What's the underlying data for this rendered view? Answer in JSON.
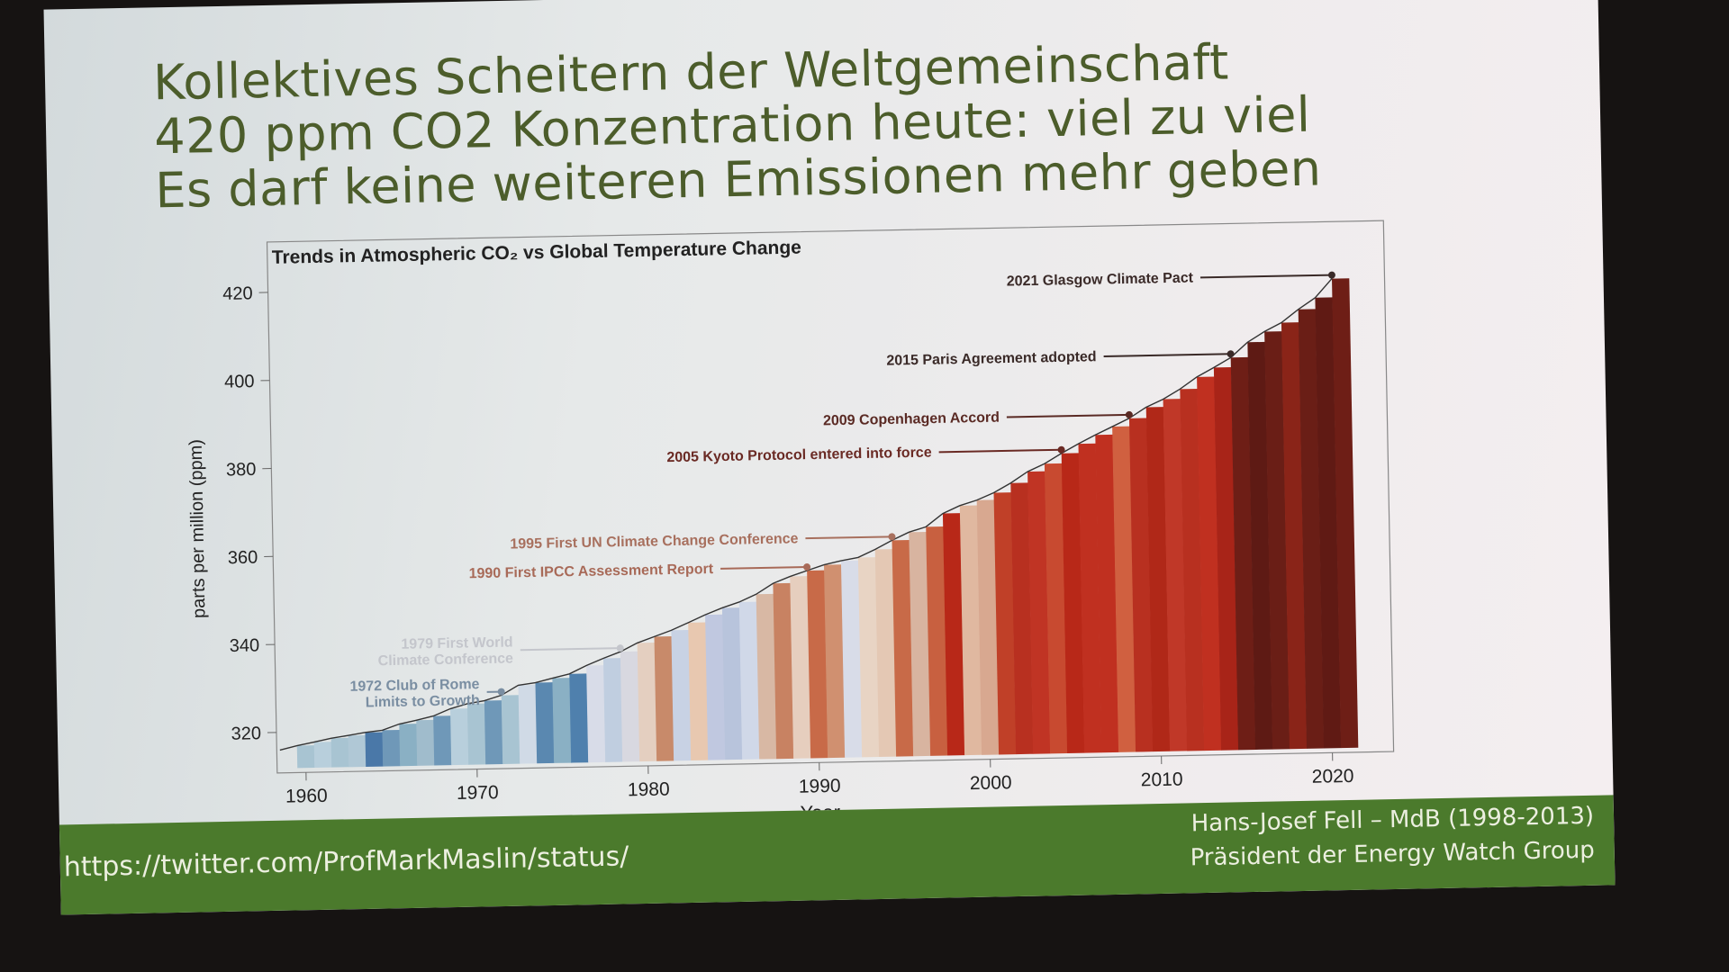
{
  "slide": {
    "title_lines": [
      "Kollektives Scheitern der Weltgemeinschaft",
      "420 ppm CO2 Konzentration heute: viel zu viel",
      "Es darf keine weiteren Emissionen mehr geben"
    ],
    "footer": {
      "url": "https://twitter.com/ProfMarkMaslin/status/",
      "credit_line1": "Hans-Josef Fell – MdB (1998-2013)",
      "credit_line2": "Präsident der Energy Watch Group"
    },
    "colors": {
      "title": "#4c5d2b",
      "footer_bg": "#4b7a2c",
      "footer_text": "#ecefe0"
    }
  },
  "chart_data": {
    "type": "area",
    "title": "Trends in Atmospheric CO₂ vs Global Temperature Change",
    "xlabel": "Year",
    "ylabel": "parts per million (ppm)",
    "xlim": [
      1958,
      2022
    ],
    "ylim": [
      310,
      424
    ],
    "x_ticks": [
      "1960",
      "1970",
      "1980",
      "1990",
      "2000",
      "2010",
      "2020"
    ],
    "y_ticks": [
      "320",
      "340",
      "360",
      "380",
      "400",
      "420"
    ],
    "grid": false,
    "legend": "none",
    "x": [
      1959,
      1960,
      1961,
      1962,
      1963,
      1964,
      1965,
      1966,
      1967,
      1968,
      1969,
      1970,
      1971,
      1972,
      1973,
      1974,
      1975,
      1976,
      1977,
      1978,
      1979,
      1980,
      1981,
      1982,
      1983,
      1984,
      1985,
      1986,
      1987,
      1988,
      1989,
      1990,
      1991,
      1992,
      1993,
      1994,
      1995,
      1996,
      1997,
      1998,
      1999,
      2000,
      2001,
      2002,
      2003,
      2004,
      2005,
      2006,
      2007,
      2008,
      2009,
      2010,
      2011,
      2012,
      2013,
      2014,
      2015,
      2016,
      2017,
      2018,
      2019,
      2020,
      2021
    ],
    "co2_ppm": [
      315.98,
      316.91,
      317.64,
      318.45,
      318.99,
      319.62,
      320.04,
      321.38,
      322.16,
      323.04,
      324.62,
      325.68,
      326.32,
      327.46,
      329.68,
      330.19,
      331.13,
      332.03,
      333.84,
      335.41,
      336.84,
      338.76,
      340.12,
      341.48,
      343.15,
      344.87,
      346.35,
      347.61,
      349.31,
      351.69,
      353.2,
      354.45,
      355.7,
      356.54,
      357.21,
      358.96,
      360.97,
      362.74,
      363.88,
      366.84,
      368.54,
      369.71,
      371.32,
      373.45,
      375.98,
      377.7,
      379.98,
      382.09,
      384.02,
      385.83,
      387.64,
      390.1,
      391.85,
      394.06,
      396.74,
      398.81,
      401.01,
      404.41,
      406.76,
      408.72,
      411.66,
      414.24,
      418.5
    ],
    "stripe_colors": [
      "#a8c4d2",
      "#a8c4d2",
      "#b8cfdc",
      "#a8c4d2",
      "#b0c8d6",
      "#4a78a8",
      "#6f98b8",
      "#8ab0c4",
      "#a0bccc",
      "#6f98b8",
      "#b8cfdc",
      "#a8c4d2",
      "#6f98b8",
      "#a8c4d2",
      "#d0dae6",
      "#5a88b0",
      "#8ab0c4",
      "#4f80ad",
      "#d8dce8",
      "#c0cee0",
      "#d8d8e0",
      "#e4cfc0",
      "#c88a6a",
      "#c8d2e4",
      "#e8c8b0",
      "#c0c8e0",
      "#b8c4dc",
      "#d0d8e8",
      "#d8b8a4",
      "#c88262",
      "#e6cebe",
      "#c86a48",
      "#d09070",
      "#d8dce8",
      "#e8d4c4",
      "#e4c8b4",
      "#c86a48",
      "#d8b4a0",
      "#c86040",
      "#b82818",
      "#e0b8a0",
      "#d8a890",
      "#c04028",
      "#b83020",
      "#c03424",
      "#c84a30",
      "#b82818",
      "#c03020",
      "#c03020",
      "#d06040",
      "#b83020",
      "#b02818",
      "#c03828",
      "#b83020",
      "#c03020",
      "#a82418",
      "#6e1e16",
      "#5e1a14",
      "#6a1e16",
      "#8a2418",
      "#6a1e16",
      "#601a14",
      "#6e1e16"
    ],
    "annotations": [
      {
        "year": 2021,
        "label": "2021 Glasgow Climate Pact",
        "color": "#3a2a28"
      },
      {
        "year": 2015,
        "label": "2015 Paris Agreement adopted",
        "color": "#3a2a28"
      },
      {
        "year": 2009,
        "label": "2009 Copenhagen Accord",
        "color": "#5a2a24"
      },
      {
        "year": 2005,
        "label": "2005 Kyoto Protocol entered into force",
        "color": "#6a2a24"
      },
      {
        "year": 1995,
        "label": "1995 First UN Climate Change Conference",
        "color": "#a8705e"
      },
      {
        "year": 1990,
        "label": "1990 First IPCC Assessment Report",
        "color": "#a86a58"
      },
      {
        "year": 1979,
        "label": "1979 First World|Climate Conference",
        "color": "#c4c6cc"
      },
      {
        "year": 1972,
        "label": "1972 Club of Rome|Limits to Growth",
        "color": "#7a8ea2"
      }
    ]
  }
}
